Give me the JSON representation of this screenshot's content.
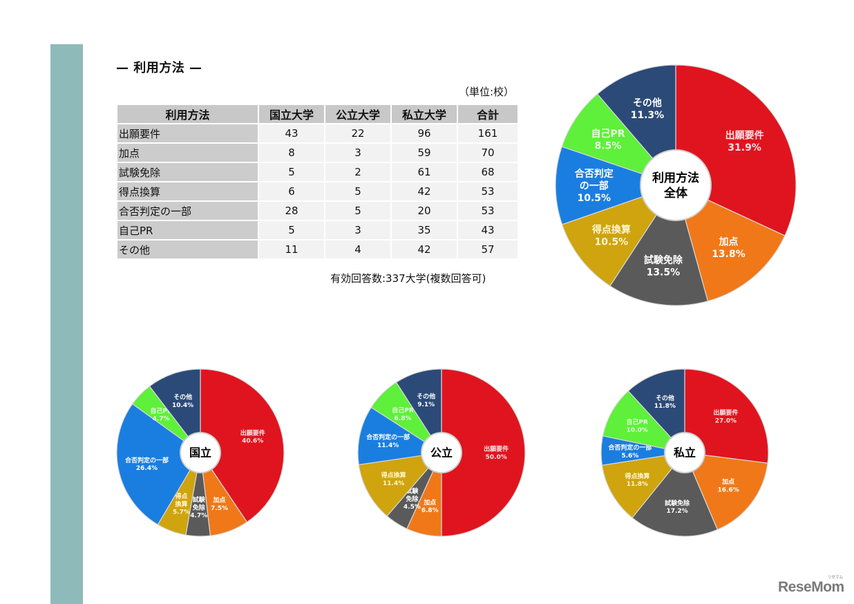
{
  "title": "— 利用方法 —",
  "unit_label": "（単位:校）",
  "table": {
    "headers": [
      "利用方法",
      "国立大学",
      "公立大学",
      "私立大学",
      "合計"
    ],
    "rows": [
      [
        "出願要件",
        "43",
        "22",
        "96",
        "161"
      ],
      [
        "加点",
        "8",
        "3",
        "59",
        "70"
      ],
      [
        "試験免除",
        "5",
        "2",
        "61",
        "68"
      ],
      [
        "得点換算",
        "6",
        "5",
        "42",
        "53"
      ],
      [
        "合否判定の一部",
        "28",
        "5",
        "20",
        "53"
      ],
      [
        "自己PR",
        "5",
        "3",
        "35",
        "43"
      ],
      [
        "その他",
        "11",
        "4",
        "42",
        "57"
      ]
    ]
  },
  "note": "有効回答数:337大学(複数回答可)",
  "logo": {
    "text": "ReseMom",
    "sub": "リセマム"
  },
  "colors": {
    "出願要件": "#e0141e",
    "加点": "#f07818",
    "試験免除": "#5a5a5a",
    "得点換算": "#cfa40e",
    "合否判定の一部": "#1a7ee0",
    "自己PR": "#5ef03a",
    "その他": "#2c4a78"
  },
  "chart_data": [
    {
      "type": "pie",
      "title": "利用方法全体",
      "center_label": [
        "利用方法",
        "全体"
      ],
      "categories": [
        "出願要件",
        "加点",
        "試験免除",
        "得点換算",
        "合否判定の一部",
        "自己PR",
        "その他"
      ],
      "values": [
        31.9,
        13.8,
        13.5,
        10.5,
        10.5,
        8.5,
        11.3
      ],
      "labels": [
        "31.9%",
        "13.8%",
        "13.5%",
        "10.5%",
        "10.5%",
        "8.5%",
        "11.3%"
      ],
      "display_names": [
        [
          "出願要件"
        ],
        [
          "加点"
        ],
        [
          "試験免除"
        ],
        [
          "得点換算"
        ],
        [
          "合否判定",
          "の一部"
        ],
        [
          "自己PR"
        ],
        [
          "その他"
        ]
      ]
    },
    {
      "type": "pie",
      "title": "国立",
      "center_label": [
        "国立"
      ],
      "categories": [
        "出願要件",
        "加点",
        "試験免除",
        "得点換算",
        "合否判定の一部",
        "自己PR",
        "その他"
      ],
      "values": [
        40.6,
        7.5,
        4.7,
        5.7,
        26.4,
        4.7,
        10.4
      ],
      "labels": [
        "40.6%",
        "7.5%",
        "4.7%",
        "5.7%",
        "26.4%",
        "4.7%",
        "10.4%"
      ],
      "display_names": [
        [
          "出願要件"
        ],
        [
          "加点"
        ],
        [
          "試験",
          "免除"
        ],
        [
          "得点",
          "換算"
        ],
        [
          "合否判定の一部"
        ],
        [
          "自己PR"
        ],
        [
          "その他"
        ]
      ]
    },
    {
      "type": "pie",
      "title": "公立",
      "center_label": [
        "公立"
      ],
      "categories": [
        "出願要件",
        "加点",
        "試験免除",
        "得点換算",
        "合否判定の一部",
        "自己PR",
        "その他"
      ],
      "values": [
        50.0,
        6.8,
        4.5,
        11.4,
        11.4,
        6.8,
        9.1
      ],
      "labels": [
        "50.0%",
        "6.8%",
        "4.5%",
        "11.4%",
        "11.4%",
        "6.8%",
        "9.1%"
      ],
      "display_names": [
        [
          "出願要件"
        ],
        [
          "加点"
        ],
        [
          "試験",
          "免除"
        ],
        [
          "得点換算"
        ],
        [
          "合否判定の一部"
        ],
        [
          "自己PR"
        ],
        [
          "その他"
        ]
      ]
    },
    {
      "type": "pie",
      "title": "私立",
      "center_label": [
        "私立"
      ],
      "categories": [
        "出願要件",
        "加点",
        "試験免除",
        "得点換算",
        "合否判定の一部",
        "自己PR",
        "その他"
      ],
      "values": [
        27.0,
        16.6,
        17.2,
        11.8,
        5.6,
        10.0,
        11.8
      ],
      "labels": [
        "27.0%",
        "16.6%",
        "17.2%",
        "11.8%",
        "5.6%",
        "10.0%",
        "11.8%"
      ],
      "display_names": [
        [
          "出願要件"
        ],
        [
          "加点"
        ],
        [
          "試験免除"
        ],
        [
          "得点換算"
        ],
        [
          "合否判定の一部"
        ],
        [
          "自己PR"
        ],
        [
          "その他"
        ]
      ]
    }
  ]
}
